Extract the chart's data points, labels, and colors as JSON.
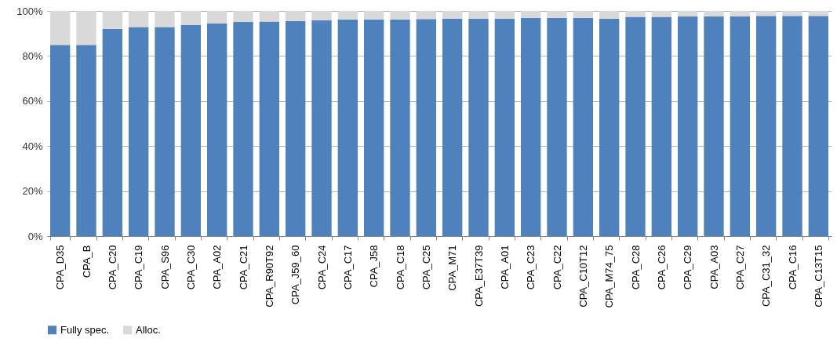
{
  "chart_data": {
    "type": "bar",
    "stacked": true,
    "categories": [
      "CPA_D35",
      "CPA_B",
      "CPA_C20",
      "CPA_C19",
      "CPA_S96",
      "CPA_C30",
      "CPA_A02",
      "CPA_C21",
      "CPA_R90T92",
      "CPA_J59_60",
      "CPA_C24",
      "CPA_C17",
      "CPA_J58",
      "CPA_C18",
      "CPA_C25",
      "CPA_M71",
      "CPA_E37T39",
      "CPA_A01",
      "CPA_C23",
      "CPA_C22",
      "CPA_C10T12",
      "CPA_M74_75",
      "CPA_C28",
      "CPA_C26",
      "CPA_C29",
      "CPA_A03",
      "CPA_C27",
      "CPA_C31_32",
      "CPA_C16",
      "CPA_C13T15"
    ],
    "series": [
      {
        "name": "Fully spec.",
        "color": "#4f81bd",
        "values": [
          84.9,
          84.9,
          92.1,
          92.9,
          92.9,
          93.8,
          94.5,
          95.1,
          95.3,
          95.6,
          95.9,
          96.2,
          96.2,
          96.2,
          96.4,
          96.5,
          96.5,
          96.5,
          96.9,
          96.9,
          96.9,
          96.5,
          97.4,
          97.4,
          97.6,
          97.6,
          97.6,
          97.8,
          97.8,
          97.8
        ]
      },
      {
        "name": "Alloc.",
        "color": "#d9d9d9",
        "values": [
          15.1,
          15.1,
          7.9,
          7.1,
          7.1,
          6.2,
          5.5,
          4.9,
          4.7,
          4.4,
          4.1,
          3.8,
          3.8,
          3.8,
          3.6,
          3.5,
          3.5,
          3.5,
          3.1,
          3.1,
          3.1,
          3.5,
          2.6,
          2.6,
          2.4,
          2.4,
          2.4,
          2.2,
          2.2,
          2.2
        ]
      }
    ],
    "ylim": [
      0,
      100
    ],
    "yticks": [
      {
        "value": 0,
        "label": "0%"
      },
      {
        "value": 20,
        "label": "20%"
      },
      {
        "value": 40,
        "label": "40%"
      },
      {
        "value": 60,
        "label": "60%"
      },
      {
        "value": 80,
        "label": "80%"
      },
      {
        "value": 100,
        "label": "100%"
      }
    ],
    "grid": "y",
    "legend": "bottom"
  }
}
